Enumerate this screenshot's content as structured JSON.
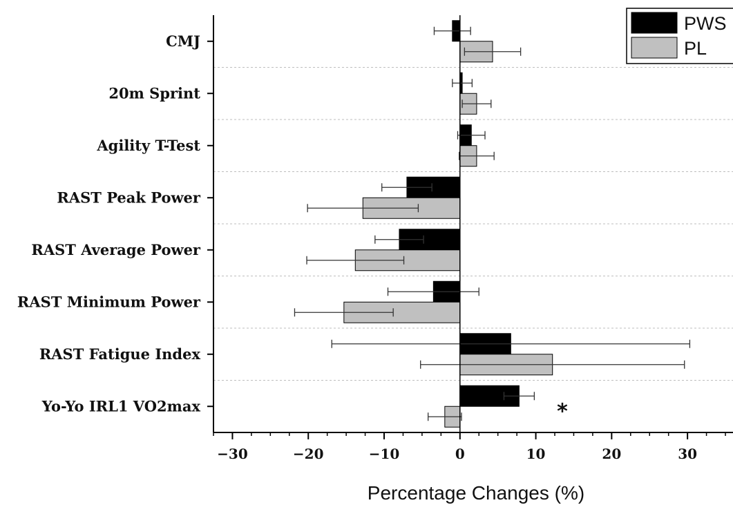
{
  "chart_data": {
    "type": "bar",
    "orientation": "horizontal",
    "categories": [
      "CMJ",
      "20m  Sprint",
      "Agility T-Test",
      "RAST Peak Power",
      "RAST Average Power",
      "RAST Minimum Power",
      "RAST Fatigue Index",
      "Yo-Yo IRL1 VO2max"
    ],
    "series": [
      {
        "name": "PWS",
        "color": "#000000",
        "values": [
          -1.0,
          0.3,
          1.5,
          -7.0,
          -8.0,
          -3.5,
          6.7,
          7.8
        ],
        "errors": [
          2.4,
          1.3,
          1.8,
          3.3,
          3.2,
          6.0,
          23.6,
          2.0
        ]
      },
      {
        "name": "PL",
        "color": "#c0c0c0",
        "values": [
          4.3,
          2.2,
          2.2,
          -12.8,
          -13.8,
          -15.3,
          12.2,
          -2.0
        ],
        "errors": [
          3.7,
          1.9,
          2.3,
          7.3,
          6.4,
          6.5,
          17.4,
          2.2
        ]
      }
    ],
    "xlabel": "Percentage Changes (%)",
    "ylabel": "",
    "xlim": [
      -32.5,
      36
    ],
    "xticks": [
      -30,
      -20,
      -10,
      0,
      10,
      20,
      30
    ],
    "xtick_labels": [
      "−30",
      "−20",
      "−10",
      "0",
      "10",
      "20",
      "30"
    ],
    "grid": "horizontal dashed between categories",
    "legend_position": "top-right",
    "annotations": [
      {
        "text": "*",
        "category": "Yo-Yo IRL1 VO2max",
        "x": 13.5
      }
    ]
  }
}
